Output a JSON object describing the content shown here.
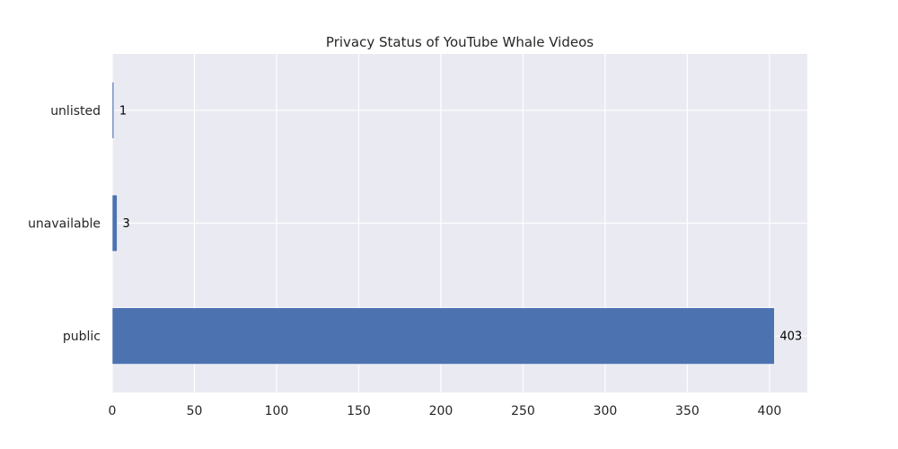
{
  "chart_data": {
    "type": "bar",
    "orientation": "horizontal",
    "title": "Privacy Status of YouTube Whale Videos",
    "xlabel": "",
    "ylabel": "",
    "categories": [
      "public",
      "unavailable",
      "unlisted"
    ],
    "values": [
      403,
      3,
      1
    ],
    "data_labels": [
      "403",
      "3",
      "1"
    ],
    "xlim": [
      0,
      423
    ],
    "xticks": [
      0,
      50,
      100,
      150,
      200,
      250,
      300,
      350,
      400
    ],
    "grid": true,
    "legend": "none"
  },
  "colors": {
    "bar": "#4c72b0",
    "plot_background": "#eaeaf2",
    "grid": "#ffffff",
    "text": "#262626"
  }
}
